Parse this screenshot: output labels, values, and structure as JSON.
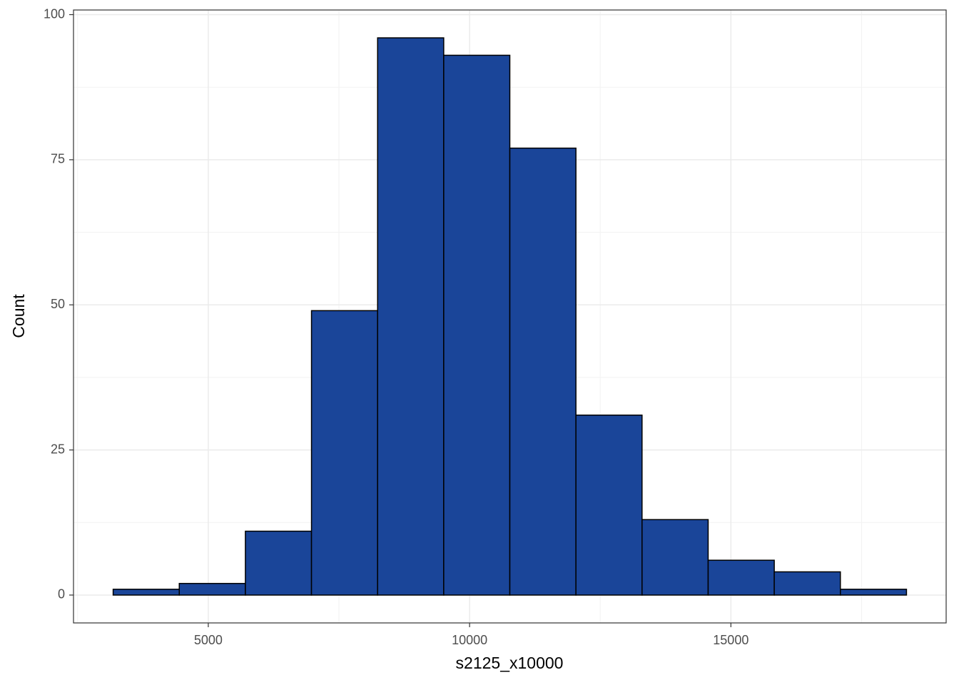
{
  "chart_data": {
    "type": "histogram",
    "x_label": "s2125_x10000",
    "y_label": "Count",
    "bins": [
      3180,
      4445,
      5710,
      6975,
      8240,
      9505,
      10770,
      12035,
      13300,
      14565,
      15830,
      17095,
      18360
    ],
    "values": [
      1,
      2,
      11,
      49,
      96,
      93,
      77,
      31,
      13,
      6,
      4,
      1
    ],
    "color": "#1a4599",
    "edge_color": "#000000",
    "xlim": [
      2421,
      19119
    ],
    "ylim": [
      -4.8,
      100.8
    ],
    "xticks": [
      5000,
      10000,
      15000
    ],
    "yticks": [
      0,
      25,
      50,
      75,
      100
    ],
    "x_minor_ticks": [
      2500,
      7500,
      12500,
      17500
    ],
    "y_minor_ticks": [
      12.5,
      37.5,
      62.5,
      87.5
    ],
    "grid": true
  }
}
